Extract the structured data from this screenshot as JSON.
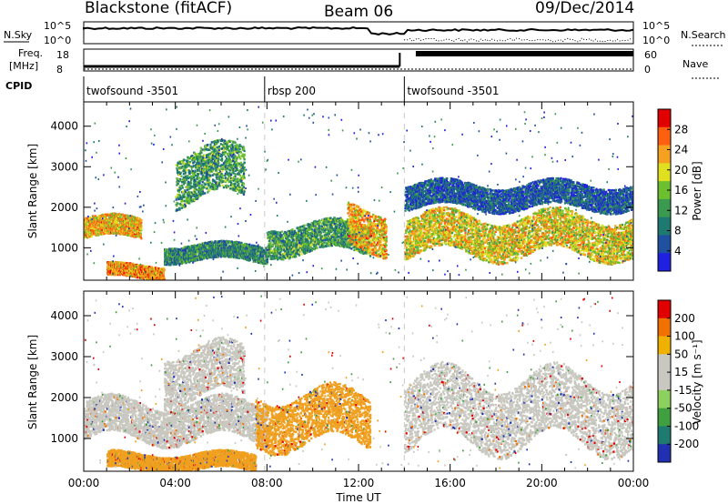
{
  "header": {
    "radar": "Blackstone (fitACF)",
    "beam": "Beam 06",
    "date": "09/Dec/2014"
  },
  "status_panels": {
    "nsky_label": "N.Sky",
    "nsearch_label": "N.Search",
    "freq_label_1": "Freq.",
    "freq_label_2": "[MHz]",
    "nave_label": "Nave",
    "cpid_label": "CPID",
    "nsky_ticks": [
      "10^5",
      "10^0"
    ],
    "nsearch_ticks": [
      "10^5",
      "10^0"
    ],
    "freq_ticks": [
      "18",
      "8"
    ],
    "nave_ticks": [
      "60",
      "0"
    ],
    "cpid_segments": [
      {
        "label": "twofsound -3501",
        "start": 0,
        "end": 7.9
      },
      {
        "label": "rbsp 200",
        "start": 7.9,
        "end": 14.0
      },
      {
        "label": "twofsound -3501",
        "start": 14.0,
        "end": 24.0
      }
    ]
  },
  "chart_data": [
    {
      "type": "heatmap",
      "title": "",
      "xlabel": "",
      "ylabel": "Slant Range [km]",
      "xlim": [
        0,
        24
      ],
      "ylim": [
        200,
        4600
      ],
      "y_ticks": [
        1000,
        2000,
        3000,
        4000
      ],
      "colorbar": {
        "label": "Power [dB]",
        "ticks": [
          4,
          8,
          12,
          16,
          20,
          24,
          28
        ],
        "range": [
          0,
          32
        ],
        "colors": [
          "#2020e0",
          "#2050a0",
          "#1e7a70",
          "#3a9a50",
          "#6cc030",
          "#e0e020",
          "#f5a020",
          "#ff6010",
          "#e00000"
        ]
      },
      "series": [
        {
          "bands": [
            {
              "t0": 0.0,
              "t1": 2.5,
              "r0": 1250,
              "r1": 1750,
              "level": 22
            },
            {
              "t0": 1.0,
              "t1": 3.5,
              "r0": 280,
              "r1": 600,
              "level": 24
            },
            {
              "t0": 3.5,
              "t1": 8.0,
              "r0": 700,
              "r1": 1100,
              "level": 10
            },
            {
              "t0": 8.0,
              "t1": 12.5,
              "r0": 900,
              "r1": 1600,
              "level": 12
            },
            {
              "t0": 11.5,
              "t1": 13.2,
              "r0": 1000,
              "r1": 2000,
              "level": 22
            },
            {
              "t0": 14.0,
              "t1": 24.0,
              "r0": 850,
              "r1": 1800,
              "level": 20
            },
            {
              "t0": 14.0,
              "t1": 24.0,
              "r0": 2000,
              "r1": 2600,
              "level": 6
            },
            {
              "t0": 4.0,
              "t1": 7.0,
              "r0": 2200,
              "r1": 3400,
              "level": 12
            }
          ]
        }
      ]
    },
    {
      "type": "heatmap",
      "title": "",
      "xlabel": "Time UT",
      "ylabel": "Slant Range [km]",
      "xlim": [
        0,
        24
      ],
      "ylim": [
        200,
        4600
      ],
      "x_ticks": [
        "00:00",
        "04:00",
        "08:00",
        "12:00",
        "16:00",
        "20:00",
        "00:00"
      ],
      "y_ticks": [
        1000,
        2000,
        3000,
        4000
      ],
      "colorbar": {
        "label": "Velocity [m s⁻¹]",
        "ticks": [
          "200",
          "100",
          "50",
          "15",
          "-15",
          "-50",
          "-100",
          "-200"
        ],
        "colors": [
          "#2030b0",
          "#1f7a70",
          "#40a040",
          "#8cd060",
          "#c8c8c0",
          "#c8c8c0",
          "#f0b000",
          "#f07000",
          "#e00000"
        ]
      },
      "series": [
        {
          "bands": [
            {
              "t0": 0.0,
              "t1": 8.0,
              "r0": 1000,
              "r1": 1900,
              "level": "gray"
            },
            {
              "t0": 1.0,
              "t1": 7.5,
              "r0": 250,
              "r1": 650,
              "level": "orange"
            },
            {
              "t0": 7.5,
              "t1": 12.5,
              "r0": 900,
              "r1": 2100,
              "level": "orange"
            },
            {
              "t0": 14.0,
              "t1": 24.0,
              "r0": 900,
              "r1": 2500,
              "level": "gray"
            },
            {
              "t0": 3.5,
              "t1": 7.0,
              "r0": 2000,
              "r1": 3200,
              "level": "gray"
            }
          ]
        }
      ]
    }
  ]
}
